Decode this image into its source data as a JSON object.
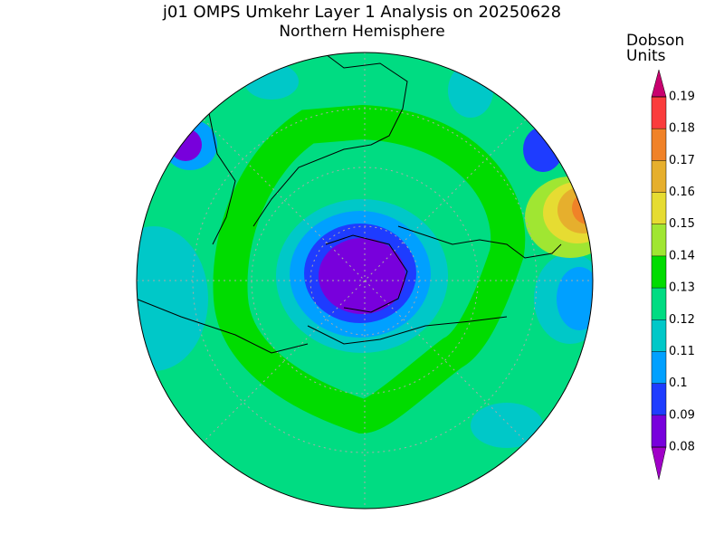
{
  "title": "j01 OMPS Umkehr Layer 1 Analysis on 20250628",
  "subtitle": "Northern Hemisphere",
  "colorbar": {
    "title_lines": [
      "Dobson",
      "Units"
    ],
    "levels": [
      0.08,
      0.09,
      0.1,
      0.11,
      0.12,
      0.13,
      0.14,
      0.15,
      0.16,
      0.17,
      0.18,
      0.19
    ],
    "colors": [
      "#a000c8",
      "#7800dc",
      "#1e3cff",
      "#00a0ff",
      "#00c8c8",
      "#00dc82",
      "#00dc00",
      "#a0e632",
      "#e6dc32",
      "#e6af2d",
      "#f08228",
      "#fa3c3c",
      "#c8006e"
    ]
  }
}
